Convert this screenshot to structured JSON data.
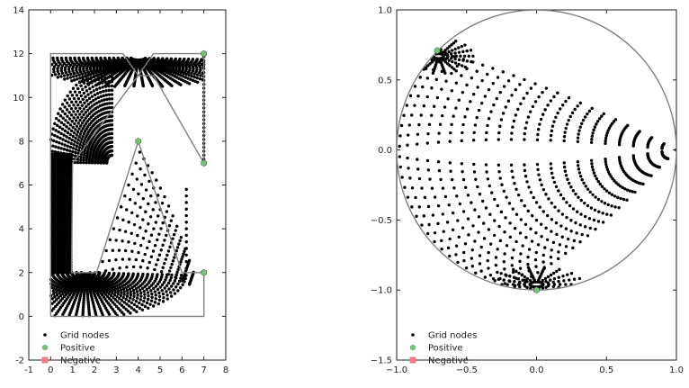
{
  "chart_data": [
    {
      "type": "scatter",
      "panel": "left",
      "xlim": [
        -1,
        8
      ],
      "ylim": [
        -2,
        14
      ],
      "xticks": [
        -1,
        0,
        1,
        2,
        3,
        4,
        5,
        6,
        7,
        8
      ],
      "yticks": [
        -2,
        0,
        2,
        4,
        6,
        8,
        10,
        12,
        14
      ],
      "grid": false,
      "legend_placement": "bottom-left",
      "series": [
        {
          "name": "Grid nodes",
          "color": "#000000",
          "marker": "dot"
        },
        {
          "name": "Positive",
          "color": "#77c27a",
          "marker": "hexagon",
          "points": [
            [
              7,
              12
            ],
            [
              4,
              8
            ],
            [
              7,
              7
            ],
            [
              7,
              2
            ]
          ]
        },
        {
          "name": "Negative",
          "color": "#f08080",
          "marker": "square",
          "points": []
        }
      ],
      "outline": [
        [
          0,
          0
        ],
        [
          0,
          12
        ],
        [
          3.3,
          12
        ],
        [
          4,
          11
        ],
        [
          4.7,
          12
        ],
        [
          7,
          12
        ],
        [
          7,
          7
        ],
        [
          4.7,
          11
        ],
        [
          4,
          11
        ],
        [
          1,
          7
        ],
        [
          0.95,
          2
        ],
        [
          2.1,
          2
        ],
        [
          4,
          8
        ],
        [
          6,
          2
        ],
        [
          7,
          2
        ],
        [
          7,
          0
        ],
        [
          0,
          0
        ]
      ]
    },
    {
      "type": "scatter",
      "panel": "right",
      "xlim": [
        -1.0,
        1.0
      ],
      "ylim": [
        -1.5,
        1.0
      ],
      "xticks": [
        "−1.0",
        "−0.5",
        "0.0",
        "0.5",
        "1.0"
      ],
      "yticks": [
        "−1.5",
        "−1.0",
        "−0.5",
        "0.0",
        "0.5",
        "1.0"
      ],
      "xtick_values": [
        -1.0,
        -0.5,
        0.0,
        0.5,
        1.0
      ],
      "ytick_values": [
        -1.5,
        -1.0,
        -0.5,
        0.0,
        0.5,
        1.0
      ],
      "grid": false,
      "legend_placement": "bottom-left",
      "series": [
        {
          "name": "Grid nodes",
          "color": "#000000",
          "marker": "dot"
        },
        {
          "name": "Positive",
          "color": "#77c27a",
          "marker": "hexagon",
          "points": [
            [
              -0.71,
              0.71
            ],
            [
              0.0,
              -1.0
            ]
          ]
        },
        {
          "name": "Negative",
          "color": "#f08080",
          "marker": "square",
          "points": []
        }
      ],
      "outline": "unit-circle"
    }
  ]
}
